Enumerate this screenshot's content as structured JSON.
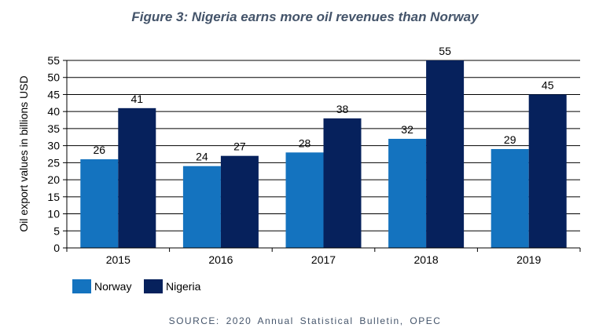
{
  "chart_data": {
    "type": "bar",
    "title": "Figure 3: Nigeria earns more oil revenues than Norway",
    "ylabel": "Oil export values in billions USD",
    "xlabel": "",
    "categories": [
      "2015",
      "2016",
      "2017",
      "2018",
      "2019"
    ],
    "series": [
      {
        "name": "Norway",
        "color": "#1473bf",
        "values": [
          26,
          24,
          28,
          32,
          29
        ]
      },
      {
        "name": "Nigeria",
        "color": "#06215c",
        "values": [
          41,
          27,
          38,
          55,
          45
        ]
      }
    ],
    "ylim": [
      0,
      55
    ],
    "yticks": [
      0,
      5,
      10,
      15,
      20,
      25,
      30,
      35,
      40,
      45,
      50,
      55
    ],
    "grid": true,
    "legend": "bottom-left",
    "data_labels": true
  },
  "source": "SOURCE: 2020 Annual Statistical Bulletin, OPEC"
}
